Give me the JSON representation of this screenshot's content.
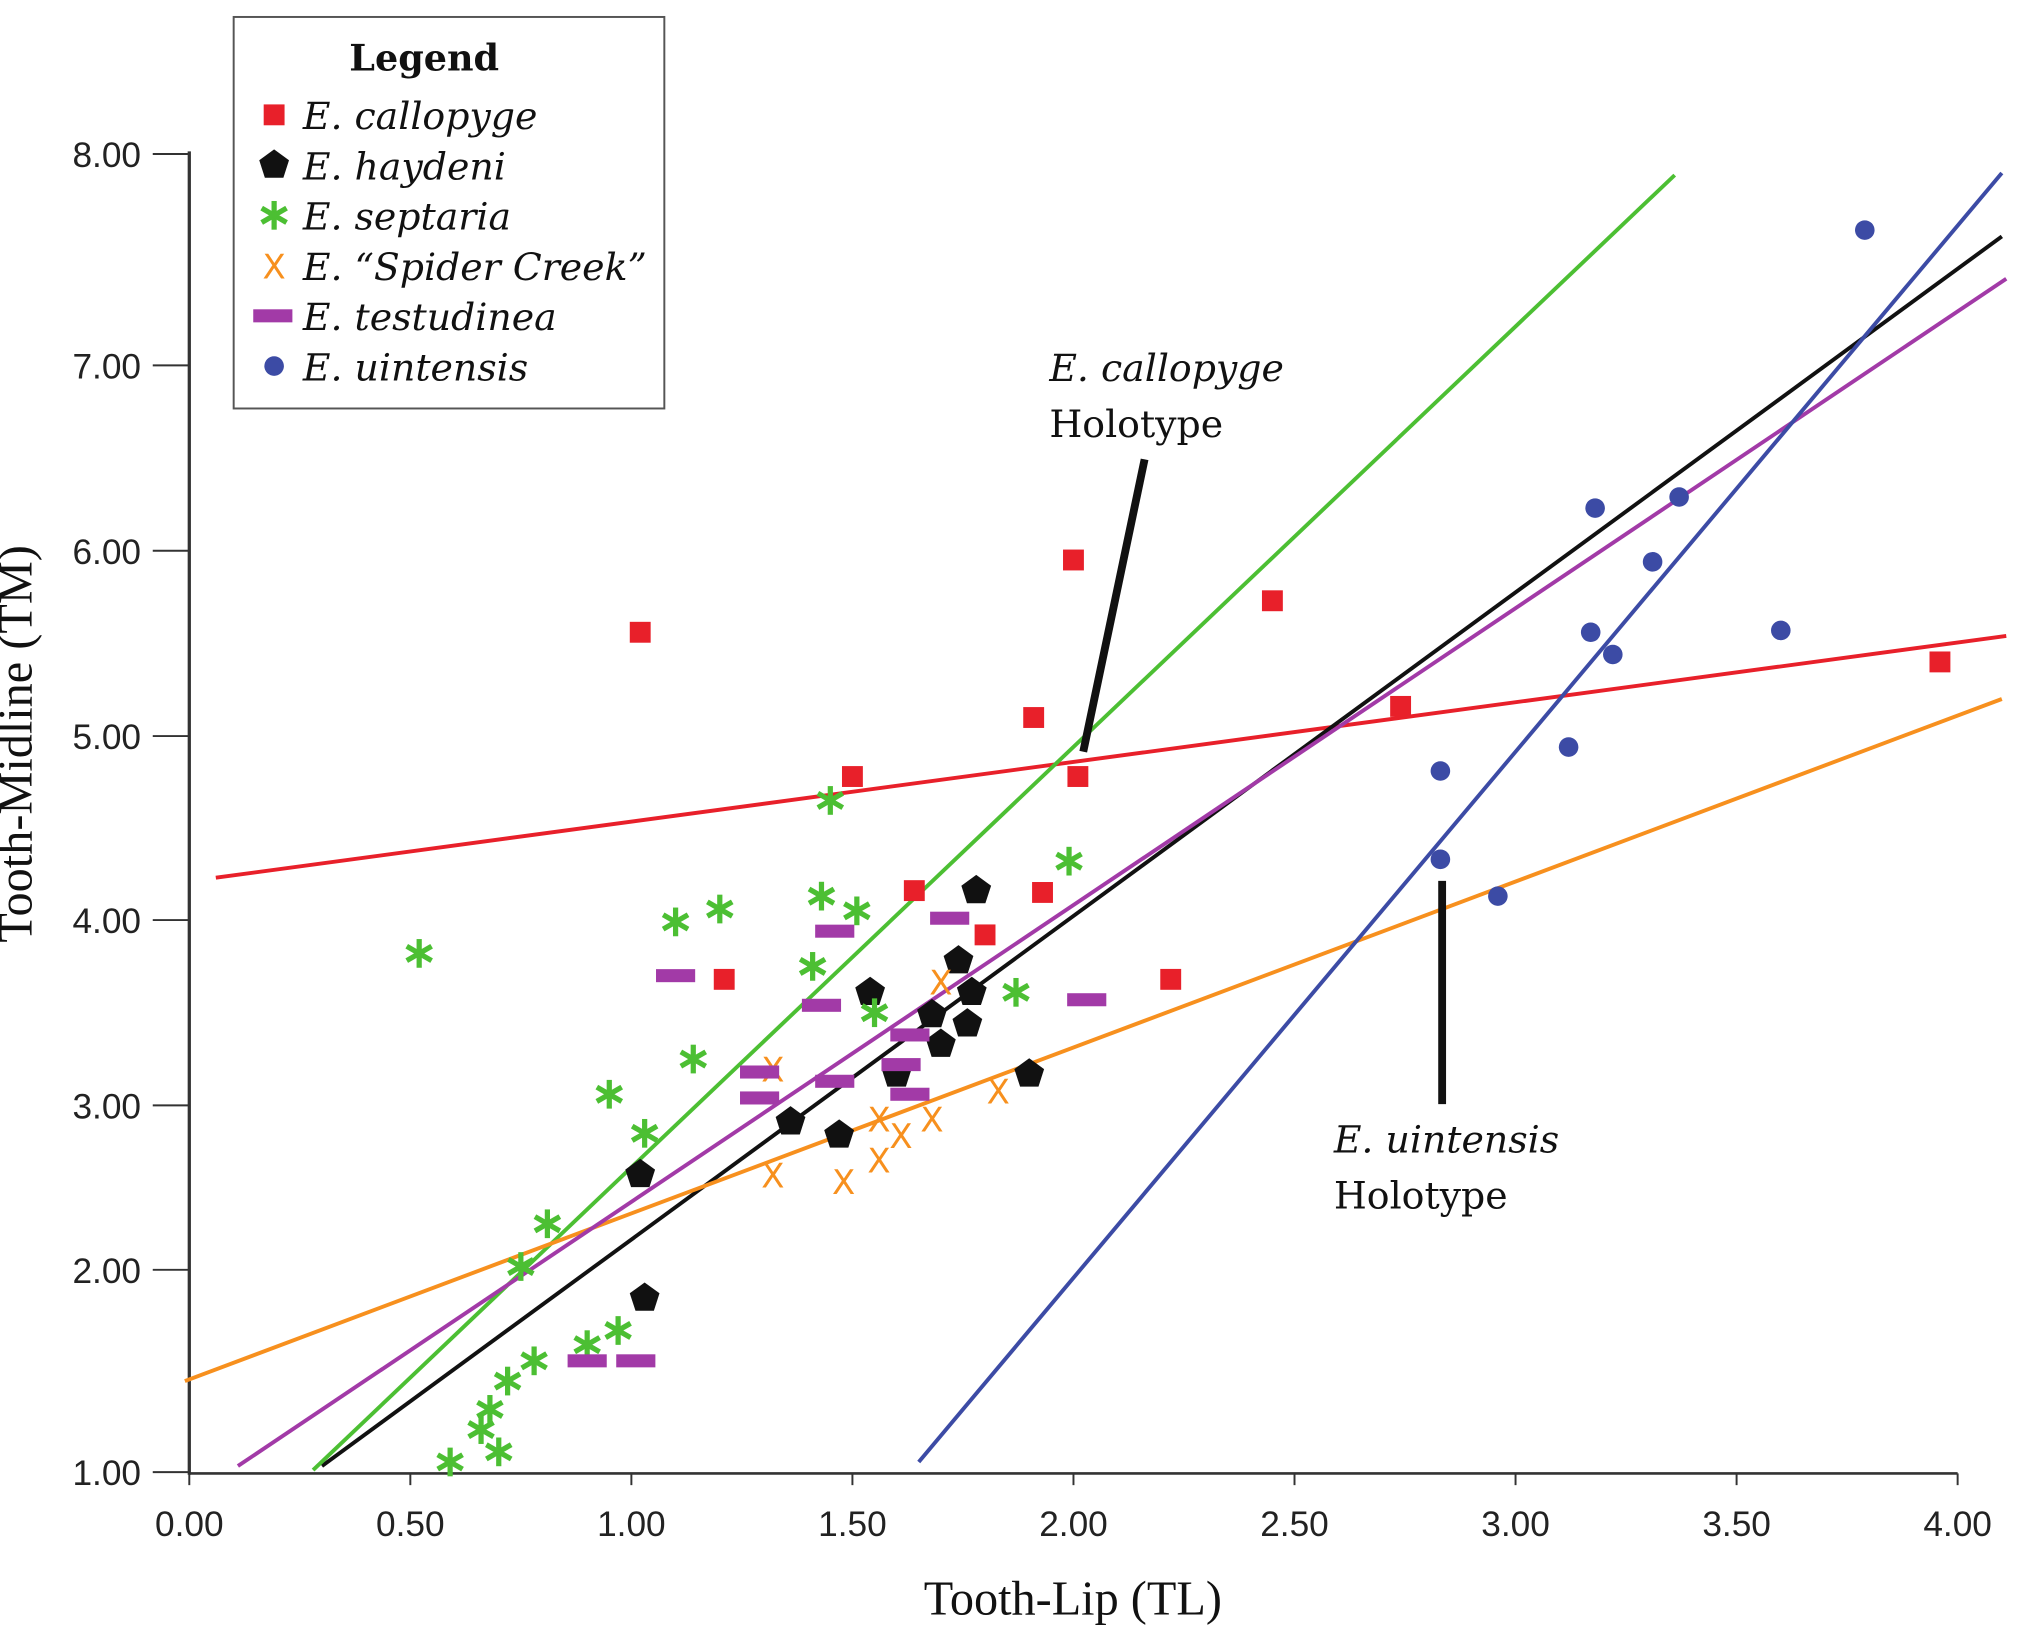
{
  "chart_data": {
    "type": "scatter",
    "title": "",
    "xlabel": "Tooth-Lip (TL)",
    "ylabel": "Tooth-Midline (TM)",
    "xlim": [
      0,
      4
    ],
    "ylim": [
      1,
      8
    ],
    "x_ticks": [
      "0.00",
      "0.50",
      "1.00",
      "1.50",
      "2.00",
      "2.50",
      "3.00",
      "3.50",
      "4.00"
    ],
    "y_ticks": [
      "1.00",
      "2.00",
      "3.00",
      "4.00",
      "5.00",
      "6.00",
      "7.00",
      "8.00"
    ],
    "grid": false,
    "legend": {
      "title": "Legend",
      "placement": "top-left"
    },
    "series": [
      {
        "name": "E. callopyge",
        "marker": "square",
        "color": "#e8202a",
        "points": [
          [
            1.02,
            5.56
          ],
          [
            2.0,
            5.95
          ],
          [
            2.45,
            5.73
          ],
          [
            1.91,
            5.1
          ],
          [
            1.5,
            4.78
          ],
          [
            2.01,
            4.78
          ],
          [
            2.74,
            5.16
          ],
          [
            3.96,
            5.4
          ],
          [
            1.21,
            3.68
          ],
          [
            1.64,
            4.16
          ],
          [
            1.93,
            4.15
          ],
          [
            1.8,
            3.92
          ],
          [
            2.22,
            3.68
          ]
        ],
        "trend": [
          [
            0.06,
            4.23
          ],
          [
            4.11,
            5.54
          ]
        ]
      },
      {
        "name": "E. haydeni",
        "marker": "pentagon",
        "color": "#111111",
        "points": [
          [
            1.78,
            4.16
          ],
          [
            1.74,
            3.78
          ],
          [
            1.54,
            3.61
          ],
          [
            1.77,
            3.61
          ],
          [
            1.68,
            3.49
          ],
          [
            1.76,
            3.44
          ],
          [
            1.7,
            3.33
          ],
          [
            1.6,
            3.17
          ],
          [
            1.9,
            3.17
          ],
          [
            1.36,
            2.9
          ],
          [
            1.47,
            2.82
          ],
          [
            1.02,
            2.58
          ],
          [
            1.03,
            1.86
          ]
        ],
        "trend": [
          [
            0.3,
            1.03
          ],
          [
            4.1,
            7.61
          ]
        ]
      },
      {
        "name": "E. septaria",
        "marker": "asterisk",
        "color": "#4cbf33",
        "points": [
          [
            0.52,
            3.82
          ],
          [
            1.45,
            4.65
          ],
          [
            1.43,
            4.13
          ],
          [
            1.51,
            4.05
          ],
          [
            1.2,
            4.06
          ],
          [
            1.1,
            3.99
          ],
          [
            1.41,
            3.75
          ],
          [
            1.55,
            3.5
          ],
          [
            1.87,
            3.61
          ],
          [
            1.99,
            4.32
          ],
          [
            1.14,
            3.25
          ],
          [
            0.95,
            3.06
          ],
          [
            1.03,
            2.83
          ],
          [
            0.81,
            2.28
          ],
          [
            0.75,
            2.02
          ],
          [
            0.78,
            1.55
          ],
          [
            0.9,
            1.63
          ],
          [
            0.97,
            1.7
          ],
          [
            0.72,
            1.45
          ],
          [
            0.68,
            1.31
          ],
          [
            0.66,
            1.21
          ],
          [
            0.7,
            1.1
          ],
          [
            0.59,
            1.05
          ]
        ],
        "trend": [
          [
            0.28,
            1.01
          ],
          [
            3.36,
            7.9
          ]
        ]
      },
      {
        "name": "E. “Spider Creek”",
        "marker": "x",
        "color": "#f7901e",
        "points": [
          [
            1.7,
            3.67
          ],
          [
            1.32,
            3.2
          ],
          [
            1.83,
            3.08
          ],
          [
            1.56,
            2.92
          ],
          [
            1.68,
            2.92
          ],
          [
            1.61,
            2.82
          ],
          [
            1.32,
            2.58
          ],
          [
            1.56,
            2.67
          ],
          [
            1.48,
            2.54
          ]
        ],
        "trend": [
          [
            -0.01,
            1.45
          ],
          [
            4.1,
            5.2
          ]
        ]
      },
      {
        "name": "E. testudinea",
        "marker": "bar",
        "color": "#a23aa7",
        "points": [
          [
            1.46,
            3.94
          ],
          [
            1.72,
            4.01
          ],
          [
            1.1,
            3.7
          ],
          [
            1.43,
            3.54
          ],
          [
            1.63,
            3.38
          ],
          [
            1.61,
            3.22
          ],
          [
            1.46,
            3.13
          ],
          [
            1.29,
            3.18
          ],
          [
            1.29,
            3.04
          ],
          [
            1.63,
            3.06
          ],
          [
            2.03,
            3.57
          ],
          [
            0.9,
            1.55
          ],
          [
            1.01,
            1.55
          ]
        ],
        "trend": [
          [
            0.11,
            1.03
          ],
          [
            4.11,
            7.41
          ]
        ]
      },
      {
        "name": "E. uintensis",
        "marker": "circle",
        "color": "#3c4ba5",
        "points": [
          [
            3.79,
            7.64
          ],
          [
            3.18,
            6.23
          ],
          [
            3.37,
            6.29
          ],
          [
            3.31,
            5.94
          ],
          [
            3.17,
            5.56
          ],
          [
            3.22,
            5.44
          ],
          [
            3.6,
            5.57
          ],
          [
            2.83,
            4.81
          ],
          [
            3.12,
            4.94
          ],
          [
            2.83,
            4.33
          ],
          [
            2.96,
            4.13
          ]
        ],
        "trend": [
          [
            1.65,
            1.05
          ],
          [
            4.1,
            7.91
          ]
        ]
      }
    ],
    "annotations": [
      {
        "species": "E. callopyge",
        "label": "Holotype"
      },
      {
        "species": "E. uintensis",
        "label": "Holotype"
      }
    ]
  }
}
